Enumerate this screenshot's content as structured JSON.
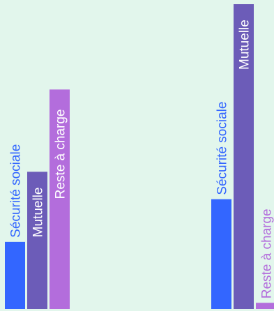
{
  "chart_data": {
    "type": "bar",
    "title": "",
    "xlabel": "",
    "ylabel": "",
    "ylim": [
      0,
      100
    ],
    "grid": false,
    "legend": "none",
    "groups": [
      {
        "bars": [
          {
            "label": "Sécurité sociale",
            "value": 22,
            "color": "#3366ff"
          },
          {
            "label": "Mutuelle",
            "value": 45,
            "color": "#6c5cb8"
          },
          {
            "label": "Reste à charge",
            "value": 72,
            "color": "#b36ddc"
          }
        ]
      },
      {
        "bars": [
          {
            "label": "Sécurité sociale",
            "value": 36,
            "color": "#3366ff"
          },
          {
            "label": "Mutuelle",
            "value": 100,
            "color": "#6c5cb8"
          },
          {
            "label": "Reste à charge",
            "value": 2,
            "color": "#b36ddc"
          }
        ]
      }
    ],
    "label_color": "#ffffff"
  }
}
